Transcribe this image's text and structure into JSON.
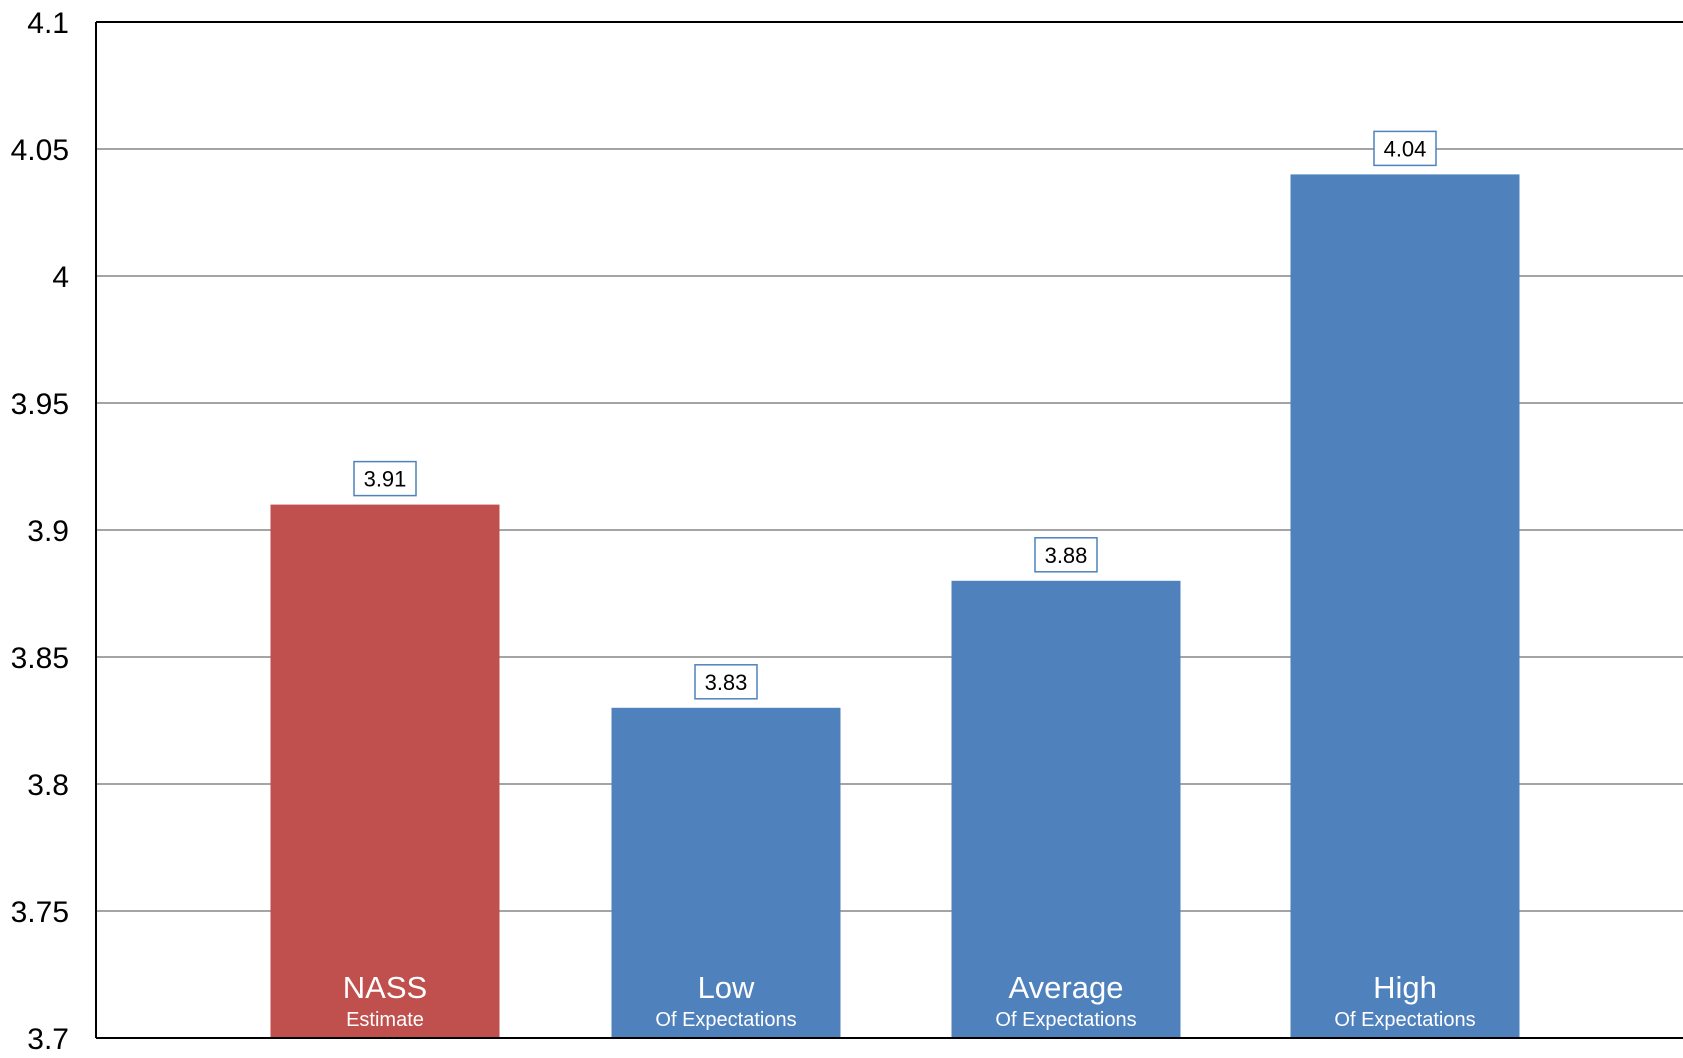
{
  "chart_data": {
    "type": "bar",
    "title": "",
    "xlabel": "",
    "ylabel": "",
    "ylim": [
      3.7,
      4.1
    ],
    "yticks": [
      3.7,
      3.75,
      3.8,
      3.85,
      3.9,
      3.95,
      4,
      4.05,
      4.1
    ],
    "ytick_labels": [
      "3.7",
      "3.75",
      "3.8",
      "3.85",
      "3.9",
      "3.95",
      "4",
      "4.05",
      "4.1"
    ],
    "grid": true,
    "legend": "none",
    "categories": [
      {
        "label": "NASS",
        "sublabel": "Estimate"
      },
      {
        "label": "Low",
        "sublabel": "Of Expectations"
      },
      {
        "label": "Average",
        "sublabel": "Of Expectations"
      },
      {
        "label": "High",
        "sublabel": "Of Expectations"
      }
    ],
    "values": [
      3.91,
      3.83,
      3.88,
      4.04
    ],
    "value_labels": [
      "3.91",
      "3.83",
      "3.88",
      "4.04"
    ],
    "colors": [
      "#c0504d",
      "#4f81bd",
      "#4f81bd",
      "#4f81bd"
    ],
    "label_box_border_color": "#4f81bd",
    "gridline_color": "#868686",
    "axis_color": "#000000",
    "category_label_color": "#ffffff"
  }
}
